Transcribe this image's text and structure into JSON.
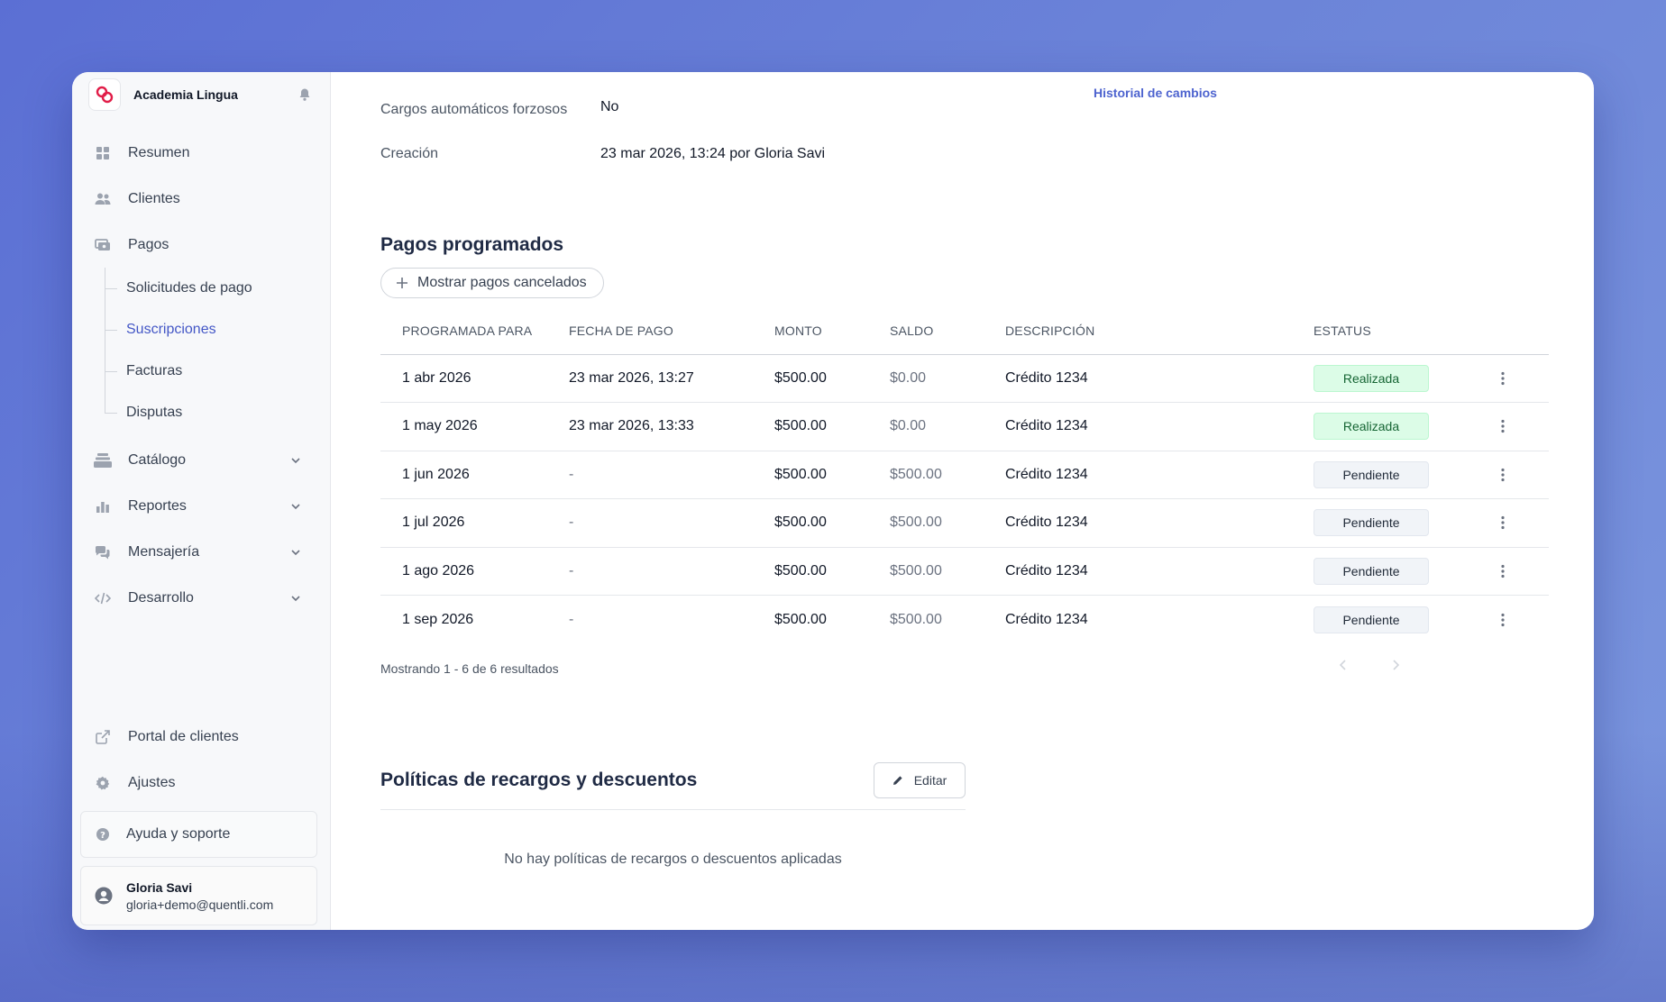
{
  "app": {
    "name": "Academia Lingua"
  },
  "sidebar": {
    "items": [
      {
        "label": "Resumen",
        "icon": "grid-icon"
      },
      {
        "label": "Clientes",
        "icon": "users-icon"
      },
      {
        "label": "Pagos",
        "icon": "payments-icon"
      }
    ],
    "sub_items": [
      {
        "label": "Solicitudes de pago"
      },
      {
        "label": "Suscripciones"
      },
      {
        "label": "Facturas"
      },
      {
        "label": "Disputas"
      }
    ],
    "collapsible": [
      {
        "label": "Catálogo",
        "icon": "catalog-icon"
      },
      {
        "label": "Reportes",
        "icon": "chart-icon"
      },
      {
        "label": "Mensajería",
        "icon": "chat-icon"
      },
      {
        "label": "Desarrollo",
        "icon": "code-icon"
      }
    ],
    "bottom": [
      {
        "label": "Portal de clientes",
        "icon": "external-link-icon"
      },
      {
        "label": "Ajustes",
        "icon": "gear-icon"
      }
    ],
    "help_label": "Ayuda y soporte",
    "user": {
      "name": "Gloria Savi",
      "email": "gloria+demo@quentli.com"
    }
  },
  "main": {
    "history_link": "Historial de cambios",
    "details": [
      {
        "key": "Cargos automáticos forzosos",
        "value": "No"
      },
      {
        "key": "Creación",
        "value": "23 mar 2026, 13:24 por Gloria Savi"
      }
    ],
    "scheduled": {
      "title": "Pagos programados",
      "show_cancelled_label": "Mostrar pagos cancelados",
      "columns": [
        "PROGRAMADA PARA",
        "FECHA DE PAGO",
        "MONTO",
        "SALDO",
        "DESCRIPCIÓN",
        "ESTATUS"
      ],
      "rows": [
        {
          "scheduled": "1 abr 2026",
          "paid": "23 mar 2026, 13:27",
          "amount": "$500.00",
          "balance": "$0.00",
          "description": "Crédito 1234",
          "status": "Realizada"
        },
        {
          "scheduled": "1 may 2026",
          "paid": "23 mar 2026, 13:33",
          "amount": "$500.00",
          "balance": "$0.00",
          "description": "Crédito 1234",
          "status": "Realizada"
        },
        {
          "scheduled": "1 jun 2026",
          "paid": "-",
          "amount": "$500.00",
          "balance": "$500.00",
          "description": "Crédito 1234",
          "status": "Pendiente"
        },
        {
          "scheduled": "1 jul 2026",
          "paid": "-",
          "amount": "$500.00",
          "balance": "$500.00",
          "description": "Crédito 1234",
          "status": "Pendiente"
        },
        {
          "scheduled": "1 ago 2026",
          "paid": "-",
          "amount": "$500.00",
          "balance": "$500.00",
          "description": "Crédito 1234",
          "status": "Pendiente"
        },
        {
          "scheduled": "1 sep 2026",
          "paid": "-",
          "amount": "$500.00",
          "balance": "$500.00",
          "description": "Crédito 1234",
          "status": "Pendiente"
        }
      ],
      "results_text": "Mostrando 1 - 6 de 6 resultados"
    },
    "policies": {
      "title": "Políticas de recargos y descuentos",
      "edit_label": "Editar",
      "empty_text": "No hay políticas de recargos o descuentos aplicadas"
    }
  },
  "colors": {
    "accent": "#4d63cf",
    "success_bg": "#dcfce7",
    "success_text": "#166534",
    "pending_bg": "#f1f4f8",
    "brand_logo": "#e11d48"
  }
}
